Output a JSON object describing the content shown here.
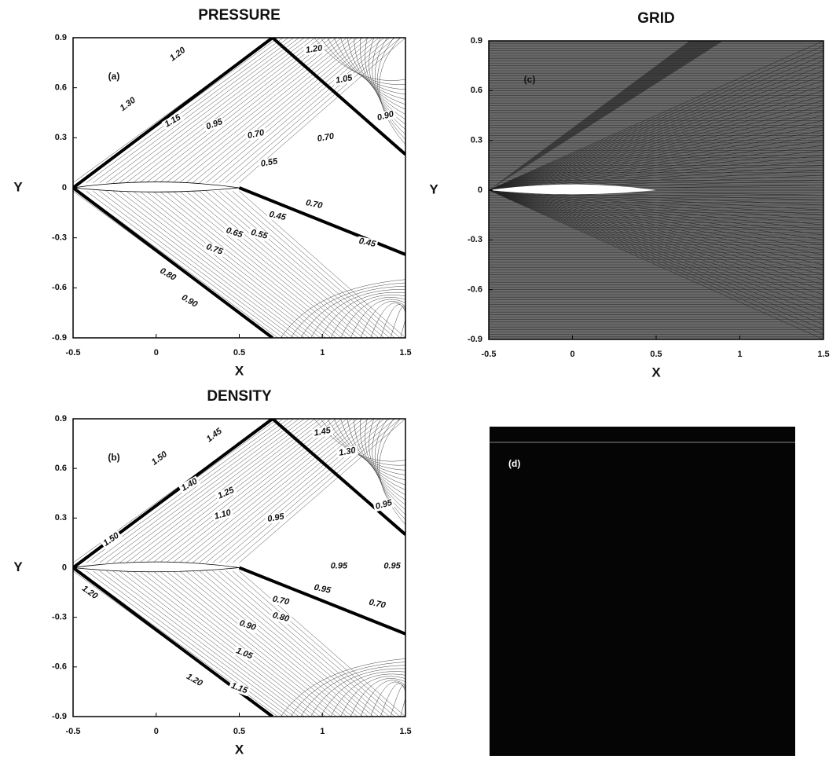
{
  "chart_data": [
    {
      "type": "contour",
      "title": "PRESSURE",
      "x_label": "X",
      "y_label": "Y",
      "panel_label": "(a)",
      "xlim": [
        -0.5,
        1.5
      ],
      "ylim": [
        -0.9,
        0.9
      ],
      "xticks": [
        -0.5,
        0,
        0.5,
        1,
        1.5
      ],
      "yticks": [
        -0.9,
        -0.6,
        -0.3,
        0,
        0.3,
        0.6,
        0.9
      ],
      "contour_labels": [
        "1.30",
        "1.20",
        "1.15",
        "0.95",
        "0.70",
        "0.55",
        "0.70",
        "1.20",
        "1.05",
        "0.90",
        "0.70",
        "0.45",
        "0.45",
        "0.55",
        "0.65",
        "0.75",
        "0.80",
        "0.90"
      ]
    },
    {
      "type": "grid",
      "title": "GRID",
      "x_label": "X",
      "y_label": "Y",
      "panel_label": "(c)",
      "xlim": [
        -0.5,
        1.5
      ],
      "ylim": [
        -0.9,
        0.9
      ],
      "xticks": [
        -0.5,
        0,
        0.5,
        1,
        1.5
      ],
      "yticks": [
        -0.9,
        -0.6,
        -0.3,
        0,
        0.3,
        0.6,
        0.9
      ]
    },
    {
      "type": "contour",
      "title": "DENSITY",
      "x_label": "X",
      "y_label": "Y",
      "panel_label": "(b)",
      "xlim": [
        -0.5,
        1.5
      ],
      "ylim": [
        -0.9,
        0.9
      ],
      "xticks": [
        -0.5,
        0,
        0.5,
        1,
        1.5
      ],
      "yticks": [
        -0.9,
        -0.6,
        -0.3,
        0,
        0.3,
        0.6,
        0.9
      ],
      "contour_labels": [
        "1.50",
        "1.45",
        "1.45",
        "1.30",
        "1.40",
        "1.25",
        "1.10",
        "0.95",
        "0.95",
        "1.50",
        "0.95",
        "0.95",
        "0.95",
        "0.70",
        "0.70",
        "0.80",
        "0.90",
        "1.05",
        "1.20",
        "1.20",
        "1.15"
      ]
    },
    {
      "type": "image",
      "panel_label": "(d)"
    }
  ]
}
